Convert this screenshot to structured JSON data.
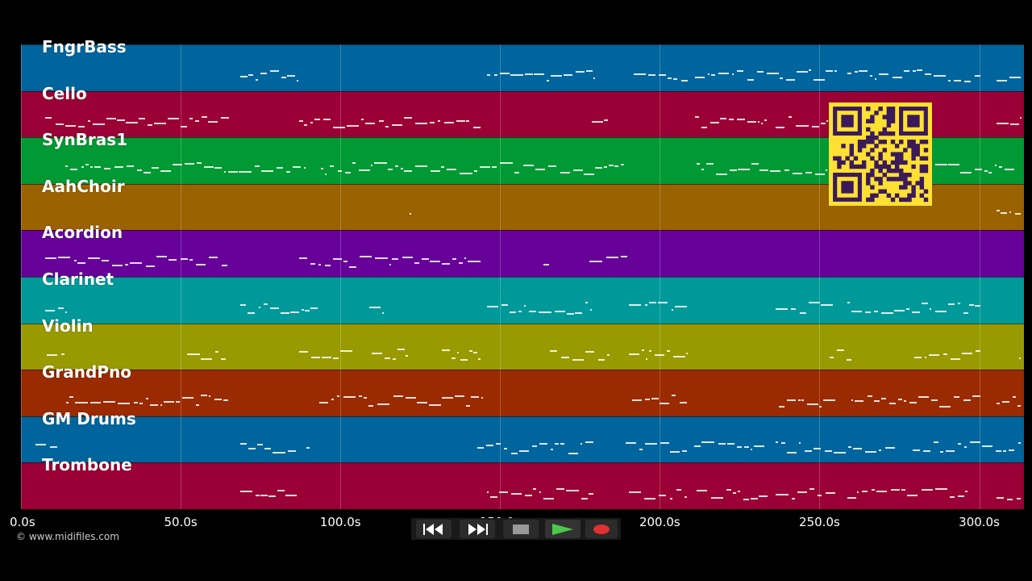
{
  "tracks": [
    {
      "name": "FngrBass",
      "color": "#00659c"
    },
    {
      "name": "Cello",
      "color": "#9a0035"
    },
    {
      "name": "SynBras1",
      "color": "#009933"
    },
    {
      "name": "AahChoir",
      "color": "#9a6200"
    },
    {
      "name": "Acordion",
      "color": "#660099"
    },
    {
      "name": "Clarinet",
      "color": "#009999"
    },
    {
      "name": "Violin",
      "color": "#999900"
    },
    {
      "name": "GrandPno",
      "color": "#9a2a00"
    },
    {
      "name": "GM Drums",
      "color": "#00659c"
    },
    {
      "name": "Trombone",
      "color": "#9a0035"
    }
  ],
  "timeline": {
    "ticks": [
      "0.0s",
      "50.0s",
      "100.0s",
      "150.0s",
      "200.0s",
      "250.0s",
      "300.0s"
    ],
    "tick_values": [
      0,
      50,
      100,
      150,
      200,
      250,
      300
    ],
    "max_seconds": 314
  },
  "credit": "© www.midifiles.com",
  "controls": {
    "rewind_icon": "rewind-icon",
    "fast_forward_icon": "fast-forward-icon",
    "stop_icon": "stop-icon",
    "play_icon": "play-icon",
    "record_icon": "record-icon",
    "play_color": "#4cc94c",
    "record_color": "#e03030"
  },
  "qr_code": {
    "color": "#ffe033",
    "ink": "#3a1a5a"
  }
}
